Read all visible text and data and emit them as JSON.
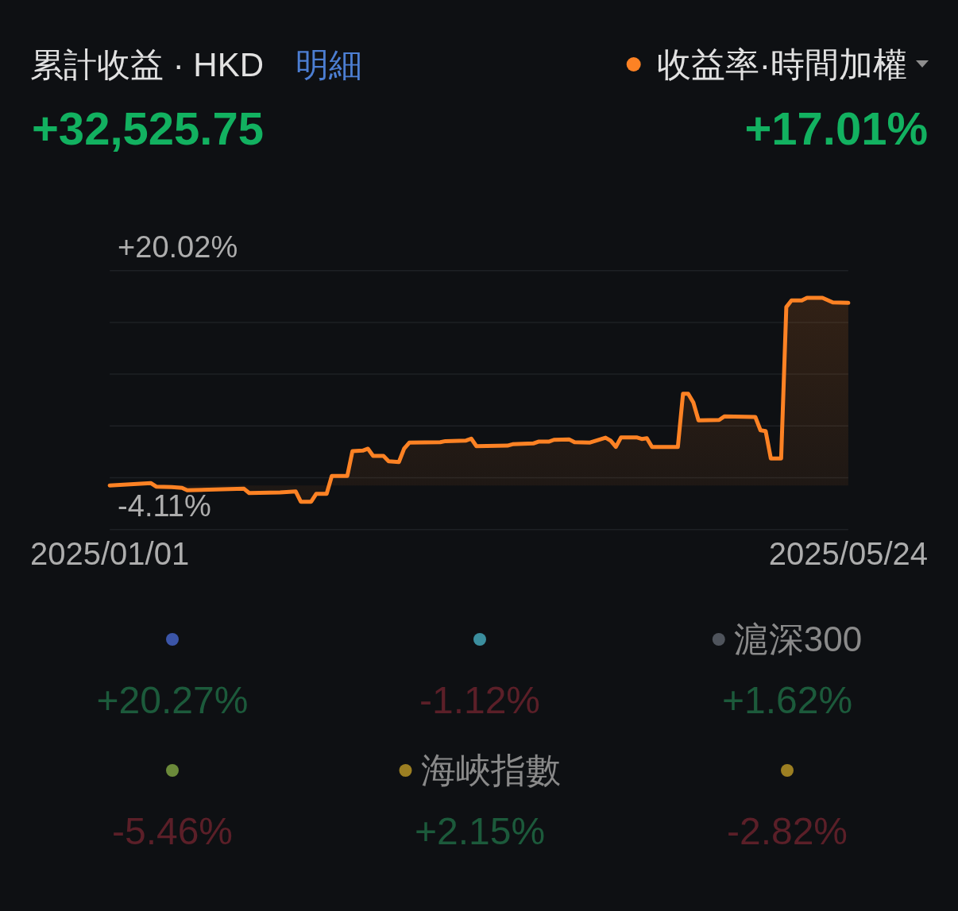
{
  "chart_data": [
    {
      "type": "area",
      "title": "累計收益 · HKD",
      "annotations": [
        "明細",
        "+32,525.75",
        "+17.01%"
      ],
      "x": [
        "2025-01-01",
        "2025-01-09",
        "2025-01-10",
        "2025-01-13",
        "2025-01-15",
        "2025-01-16",
        "2025-01-27",
        "2025-01-28",
        "2025-02-03",
        "2025-02-06",
        "2025-02-07",
        "2025-02-09",
        "2025-02-10",
        "2025-02-12",
        "2025-02-13",
        "2025-02-16",
        "2025-02-17",
        "2025-02-19",
        "2025-02-20",
        "2025-02-21",
        "2025-02-23",
        "2025-02-24",
        "2025-02-26",
        "2025-02-27",
        "2025-02-28",
        "2025-03-06",
        "2025-03-07",
        "2025-03-11",
        "2025-03-12",
        "2025-03-13",
        "2025-03-19",
        "2025-03-20",
        "2025-03-24",
        "2025-03-25",
        "2025-03-27",
        "2025-03-28",
        "2025-03-31",
        "2025-04-01",
        "2025-04-04",
        "2025-04-07",
        "2025-04-08",
        "2025-04-09",
        "2025-04-10",
        "2025-04-13",
        "2025-04-14",
        "2025-04-15",
        "2025-04-16",
        "2025-04-21",
        "2025-04-22",
        "2025-04-23",
        "2025-04-24",
        "2025-04-25",
        "2025-04-29",
        "2025-04-30",
        "2025-05-06",
        "2025-05-07",
        "2025-05-08",
        "2025-05-09",
        "2025-05-11",
        "2025-05-12",
        "2025-05-13",
        "2025-05-15",
        "2025-05-16",
        "2025-05-19",
        "2025-05-21",
        "2025-05-24"
      ],
      "series": [
        {
          "name": "收益率·時間加權",
          "color": "#fd8224",
          "values": [
            0.0,
            0.21,
            -0.11,
            -0.16,
            -0.23,
            -0.45,
            -0.31,
            -0.71,
            -0.65,
            -0.56,
            -1.52,
            -1.52,
            -0.78,
            -0.78,
            0.88,
            0.88,
            3.2,
            3.25,
            3.42,
            2.75,
            2.75,
            2.26,
            2.18,
            3.42,
            3.99,
            4.03,
            4.13,
            4.18,
            4.36,
            3.66,
            3.71,
            3.84,
            3.91,
            4.08,
            4.08,
            4.25,
            4.28,
            4.03,
            4.0,
            4.45,
            4.16,
            3.59,
            4.48,
            4.48,
            4.33,
            4.4,
            3.59,
            3.59,
            8.55,
            8.55,
            7.73,
            6.06,
            6.1,
            6.43,
            6.38,
            5.14,
            5.07,
            2.51,
            2.51,
            16.62,
            17.24,
            17.24,
            17.48,
            17.48,
            17.06,
            17.01
          ]
        }
      ],
      "xlim": [
        "2025-01-01",
        "2025-05-24"
      ],
      "xticks": [
        {
          "value": "2025-01-01",
          "label": "2025/01/01"
        },
        {
          "value": "2025-05-24",
          "label": "2025/05/24"
        }
      ],
      "ylim": [
        -4.11,
        20.02
      ],
      "yticks": [
        {
          "value": 20.02,
          "label": "+20.02%"
        },
        {
          "value": 15.19,
          "label": null
        },
        {
          "value": 10.37,
          "label": null
        },
        {
          "value": 5.54,
          "label": null
        },
        {
          "value": 0.72,
          "label": null
        },
        {
          "value": -4.11,
          "label": "-4.11%"
        }
      ],
      "grid": "y",
      "legend": "top right"
    },
    {
      "type": "other",
      "categories": [
        null,
        null,
        "滬深300",
        null,
        "海峽指數",
        null
      ],
      "values": [
        20.27,
        -1.12,
        1.62,
        -5.46,
        2.15,
        -2.82
      ],
      "value_labels": [
        "+20.27%",
        "-1.12%",
        "+1.62%",
        "-5.46%",
        "+2.15%",
        "-2.82%"
      ],
      "colors": [
        "#3b55a8",
        "#3b8e9e",
        "#4f545c",
        "#6b8a3a",
        "#9c7f22",
        "#9c7f22"
      ]
    }
  ]
}
